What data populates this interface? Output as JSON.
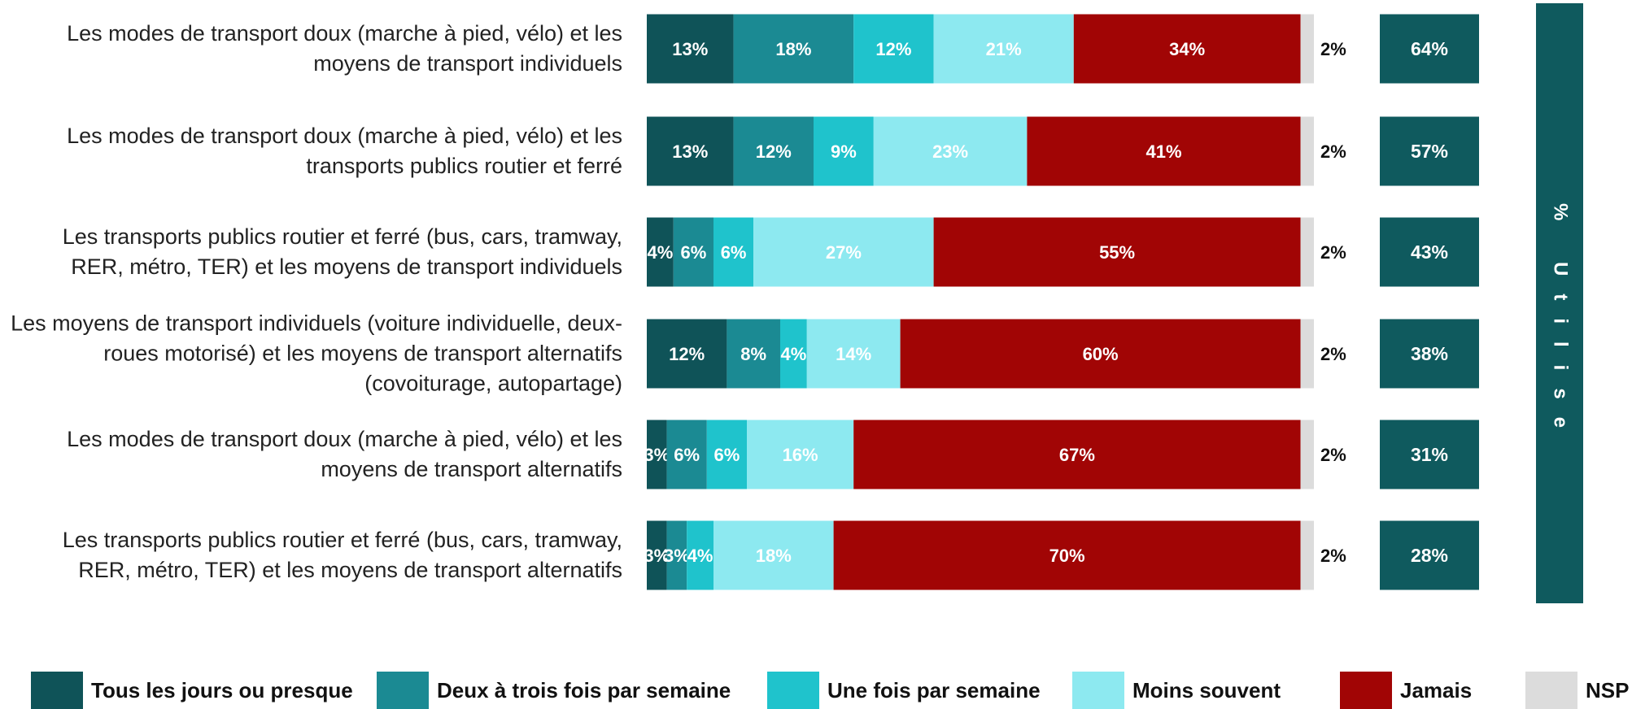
{
  "chart_data": {
    "type": "stacked-bar-horizontal",
    "categories": [
      "Les modes de transport doux (marche à pied, vélo) et les moyens de transport individuels",
      "Les modes de transport doux (marche à pied, vélo) et les transports publics routier et ferré",
      "Les transports publics routier et ferré (bus, cars, tramway, RER, métro, TER) et les moyens de transport individuels",
      "Les moyens de transport individuels (voiture individuelle, deux-roues motorisé) et les moyens de transport alternatifs (covoiturage, autopartage)",
      "Les modes de transport doux (marche à pied, vélo) et les moyens de transport alternatifs",
      "Les transports publics routier et ferré (bus, cars, tramway, RER, métro, TER) et les moyens de transport alternatifs"
    ],
    "series": [
      {
        "name": "Tous les jours ou presque",
        "color": "#0f5358",
        "values": [
          13,
          13,
          4,
          12,
          3,
          3
        ],
        "value_labels": [
          "13%",
          "13%",
          "4%",
          "12%",
          "3%",
          "3%"
        ]
      },
      {
        "name": "Deux à trois fois par semaine",
        "color": "#1b8a93",
        "values": [
          18,
          12,
          6,
          8,
          6,
          3
        ],
        "value_labels": [
          "18%",
          "12%",
          "6%",
          "8%",
          "6%",
          "3%"
        ]
      },
      {
        "name": "Une fois par semaine",
        "color": "#1fc3cc",
        "values": [
          12,
          9,
          6,
          4,
          6,
          4
        ],
        "value_labels": [
          "12%",
          "9%",
          "6%",
          "4%",
          "6%",
          "4%"
        ]
      },
      {
        "name": "Moins souvent",
        "color": "#8de9f0",
        "values": [
          21,
          23,
          27,
          14,
          16,
          18
        ],
        "value_labels": [
          "21%",
          "23%",
          "27%",
          "14%",
          "16%",
          "18%"
        ]
      },
      {
        "name": "Jamais",
        "color": "#a10505",
        "values": [
          34,
          41,
          55,
          60,
          67,
          70
        ],
        "value_labels": [
          "34%",
          "41%",
          "55%",
          "60%",
          "67%",
          "70%"
        ]
      },
      {
        "name": "NSP",
        "color": "#dcdcdc",
        "values": [
          2,
          2,
          2,
          2,
          2,
          2
        ],
        "value_labels": [
          "2%",
          "2%",
          "2%",
          "2%",
          "2%",
          "2%"
        ]
      }
    ],
    "totals": {
      "name": "% Utilise",
      "color": "#0f5a5e",
      "values": [
        64,
        57,
        43,
        38,
        31,
        28
      ],
      "value_labels": [
        "64%",
        "57%",
        "43%",
        "38%",
        "31%",
        "28%"
      ]
    },
    "xlim": [
      0,
      100
    ],
    "legend": "bottom"
  }
}
